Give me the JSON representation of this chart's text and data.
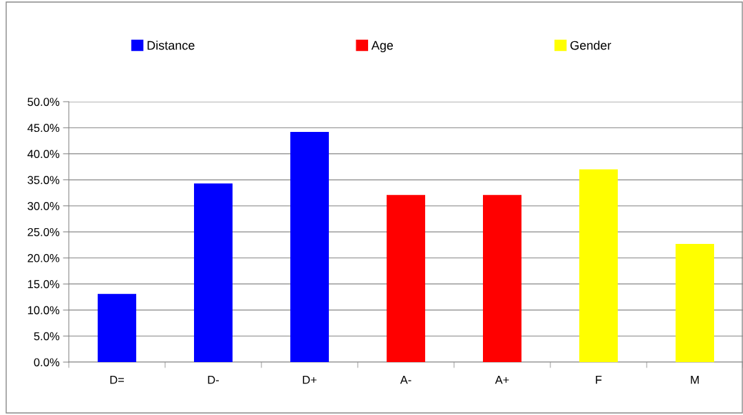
{
  "chart_data": {
    "type": "bar",
    "categories": [
      "D=",
      "D-",
      "D+",
      "A-",
      "A+",
      "F",
      "M"
    ],
    "series": [
      {
        "name": "Distance",
        "color": "#0000ff",
        "values": [
          13.1,
          34.3,
          44.2,
          null,
          null,
          null,
          null
        ]
      },
      {
        "name": "Age",
        "color": "#ff0000",
        "values": [
          null,
          null,
          null,
          32.1,
          32.1,
          null,
          null
        ]
      },
      {
        "name": "Gender",
        "color": "#ffff00",
        "values": [
          null,
          null,
          null,
          null,
          null,
          37.0,
          22.7
        ]
      }
    ],
    "ylim": [
      0,
      50
    ],
    "yticks": [
      {
        "value": 0,
        "label": "0.0%"
      },
      {
        "value": 5,
        "label": "5.0%"
      },
      {
        "value": 10,
        "label": "10.0%"
      },
      {
        "value": 15,
        "label": "15.0%"
      },
      {
        "value": 20,
        "label": "20.0%"
      },
      {
        "value": 25,
        "label": "25.0%"
      },
      {
        "value": 30,
        "label": "30.0%"
      },
      {
        "value": 35,
        "label": "35.0%"
      },
      {
        "value": 40,
        "label": "40.0%"
      },
      {
        "value": 45,
        "label": "45.0%"
      },
      {
        "value": 50,
        "label": "50.0%"
      }
    ],
    "grid": "y",
    "legend": "top"
  }
}
